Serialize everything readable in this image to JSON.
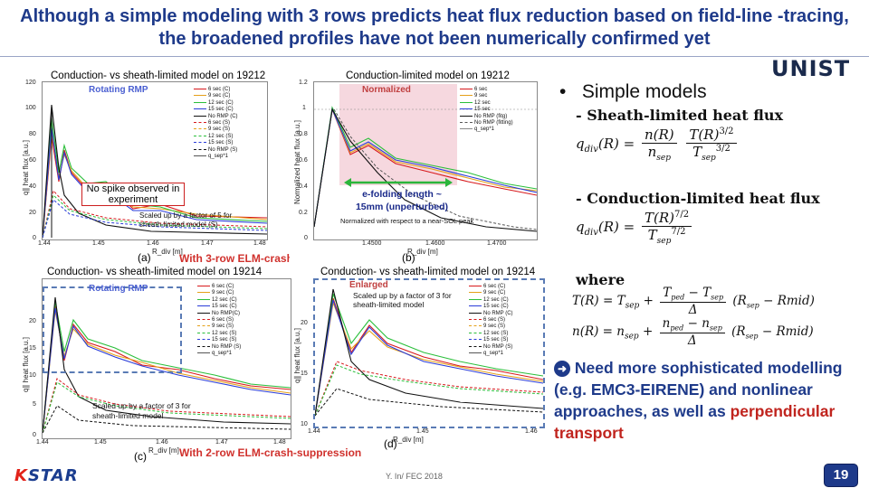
{
  "title": "Although a simple modeling with 3 rows predicts heat flux reduction based on field-line -tracing, the broadened profiles have not been numerically confirmed yet",
  "logo": "UNIST",
  "footer": "Y. In/ FEC 2018",
  "page_number": "19",
  "kstar_logo": {
    "k": "K",
    "star": "STAR"
  },
  "colors": {
    "title": "#1e3a8a",
    "highlight": "#c0241e",
    "tag": "#4a5fd1"
  },
  "panels": {
    "a": {
      "title": "Conduction- vs sheath-limited model on 19212",
      "tag": "Rotating RMP",
      "label": "(a)",
      "ylabel": "q∥ heat flux [a.u.]",
      "xlabel": "R_div [m]",
      "yticks": [
        "120",
        "100",
        "80",
        "60",
        "40",
        "20",
        "0"
      ],
      "xticks": [
        "1.44",
        "1.45",
        "1.46",
        "1.47",
        "1.48"
      ],
      "note": "No spike observed in experiment",
      "scaled": "Scaled up by a factor of 5 for sheath-limited model (S)",
      "legend": [
        "6 sec (C)",
        "9 sec (C)",
        "12 sec (C)",
        "15 sec (C)",
        "No RMP (C)",
        "6 sec (S)",
        "9 sec (S)",
        "12 sec (S)",
        "15 sec (S)",
        "No RMP (S)",
        "q_sep*1"
      ]
    },
    "b": {
      "title": "Conduction-limited model on 19212",
      "tag": "Normalized",
      "label": "(b)",
      "ylabel": "Normalized heat flux [a.u.]",
      "xlabel": "R_div [m]",
      "yticks": [
        "1.2",
        "1",
        "0.8",
        "0.6",
        "0.4",
        "0.2",
        "0"
      ],
      "xticks": [
        "1.4500",
        "1.4600",
        "1.4700"
      ],
      "efold": "e-folding length ~ 15mm (unperturbed)",
      "norm": "Normalized with respect to a near-SOL peak",
      "legend": [
        "6 sec",
        "9 sec",
        "12 sec",
        "15 sec",
        "No RMP (fitg)",
        "No RMP (fitting)",
        "q_sep*1"
      ]
    },
    "c": {
      "title": "Conduction- vs sheath-limited model on 19214",
      "tag": "Rotating RMP",
      "label": "(c)",
      "ylabel": "q∥ heat flux [a.u.]",
      "xlabel": "R_div [m]",
      "yticks": [
        "20",
        "15",
        "10",
        "5",
        "0"
      ],
      "xticks": [
        "1.44",
        "1.45",
        "1.46",
        "1.47",
        "1.48"
      ],
      "scaled": "Scaled up by a factor of 3 for sheath-limited model",
      "legend": [
        "6 sec (C)",
        "9 sec (C)",
        "12 sec (C)",
        "15 sec (C)",
        "No RMP(C)",
        "6 sec (S)",
        "9 sec (S)",
        "12 sec (S)",
        "15 sec (S)",
        "No RMP (S)",
        "q_sep*1"
      ]
    },
    "d": {
      "title": "Conduction- vs sheath-limited model on 19214",
      "tag": "Enlarged",
      "label": "(d)",
      "ylabel": "q∥ heat flux [a.u.]",
      "xlabel": "R_div [m]",
      "yticks": [
        "20",
        "15",
        "10"
      ],
      "xticks": [
        "1.44",
        "1.45",
        "1.46"
      ],
      "scaled": "Scaled up by a factor of 3 for sheath-limited model",
      "legend": [
        "6 sec (C)",
        "9 sec (C)",
        "12 sec (C)",
        "15 sec (C)",
        "No RMP (C)",
        "6 sec (S)",
        "9 sec (S)",
        "12 sec (S)",
        "15 sec (S)",
        "No RMP (S)",
        "q_sep*1"
      ]
    }
  },
  "suppression": {
    "three_row": "With 3-row ELM-crash-suppression",
    "two_row": "With 2-row ELM-crash-suppression"
  },
  "right": {
    "bullet": "Simple models",
    "sheath_head": "- Sheath-limited heat flux",
    "cond_head": "- Conduction-limited heat flux",
    "where": "where",
    "need_prefix": "Need more sophisticated modelling (e.g. EMC3-EIRENE) and nonlinear approaches, as well as",
    "need_red": "perpendicular transport"
  },
  "chart_data": [
    {
      "type": "line",
      "title": "Conduction- vs sheath-limited model on 19212",
      "xlabel": "R_div [m]",
      "ylabel": "q∥ heat flux [a.u.]",
      "xlim": [
        1.44,
        1.48
      ],
      "ylim": [
        0,
        120
      ],
      "series": [
        {
          "name": "6 sec (C)",
          "x": [
            1.44,
            1.443,
            1.445,
            1.447,
            1.45,
            1.455,
            1.46,
            1.465,
            1.47,
            1.475,
            1.48
          ],
          "y": [
            2,
            75,
            28,
            65,
            40,
            28,
            32,
            22,
            25,
            18,
            18
          ]
        },
        {
          "name": "9 sec (C)",
          "x": [
            1.44,
            1.443,
            1.445,
            1.447,
            1.45,
            1.455,
            1.46,
            1.465,
            1.47,
            1.475,
            1.48
          ],
          "y": [
            2,
            80,
            30,
            60,
            42,
            30,
            30,
            24,
            22,
            20,
            16
          ]
        },
        {
          "name": "12 sec (C)",
          "x": [
            1.44,
            1.443,
            1.445,
            1.447,
            1.45,
            1.455,
            1.46,
            1.465,
            1.47,
            1.475,
            1.48
          ],
          "y": [
            2,
            95,
            35,
            70,
            45,
            34,
            34,
            26,
            24,
            20,
            17
          ]
        },
        {
          "name": "No RMP (C)",
          "x": [
            1.44,
            1.443,
            1.445,
            1.447,
            1.45,
            1.455,
            1.46,
            1.465,
            1.47,
            1.475,
            1.48
          ],
          "y": [
            2,
            110,
            40,
            30,
            20,
            14,
            10,
            8,
            6,
            5,
            5
          ]
        }
      ]
    },
    {
      "type": "line",
      "title": "Conduction-limited model on 19212",
      "xlabel": "R_div [m]",
      "ylabel": "Normalized heat flux [a.u.]",
      "xlim": [
        1.445,
        1.475
      ],
      "ylim": [
        0,
        1.2
      ],
      "series": [
        {
          "name": "6 sec",
          "x": [
            1.445,
            1.447,
            1.449,
            1.452,
            1.455,
            1.46,
            1.465,
            1.47,
            1.475
          ],
          "y": [
            0.1,
            1.0,
            0.55,
            0.62,
            0.5,
            0.45,
            0.4,
            0.35,
            0.3
          ]
        },
        {
          "name": "12 sec",
          "x": [
            1.445,
            1.447,
            1.449,
            1.452,
            1.455,
            1.46,
            1.465,
            1.47,
            1.475
          ],
          "y": [
            0.1,
            1.0,
            0.6,
            0.65,
            0.52,
            0.5,
            0.42,
            0.38,
            0.33
          ]
        },
        {
          "name": "No RMP (fitg)",
          "x": [
            1.445,
            1.447,
            1.449,
            1.452,
            1.455,
            1.46,
            1.465,
            1.47,
            1.475
          ],
          "y": [
            0.1,
            1.0,
            0.7,
            0.5,
            0.35,
            0.22,
            0.14,
            0.09,
            0.06
          ]
        }
      ]
    },
    {
      "type": "line",
      "title": "Conduction- vs sheath-limited model on 19214",
      "xlabel": "R_div [m]",
      "ylabel": "q∥ heat flux [a.u.]",
      "xlim": [
        1.44,
        1.48
      ],
      "ylim": [
        0,
        30
      ],
      "series": [
        {
          "name": "6 sec (C)",
          "x": [
            1.44,
            1.443,
            1.445,
            1.447,
            1.45,
            1.455,
            1.46,
            1.465,
            1.47,
            1.475,
            1.48
          ],
          "y": [
            1,
            26,
            14,
            22,
            18,
            15,
            14,
            12,
            11,
            10,
            9
          ]
        },
        {
          "name": "12 sec (C)",
          "x": [
            1.44,
            1.443,
            1.445,
            1.447,
            1.45,
            1.455,
            1.46,
            1.465,
            1.47,
            1.475,
            1.48
          ],
          "y": [
            1,
            27,
            15,
            23,
            19,
            16,
            15,
            13,
            12,
            10,
            10
          ]
        },
        {
          "name": "No RMP(C)",
          "x": [
            1.44,
            1.443,
            1.445,
            1.447,
            1.45,
            1.455,
            1.46,
            1.465,
            1.47,
            1.475,
            1.48
          ],
          "y": [
            1,
            28,
            16,
            12,
            9,
            7,
            6,
            5,
            4,
            3,
            3
          ]
        }
      ]
    },
    {
      "type": "line",
      "title": "Conduction- vs sheath-limited model on 19214",
      "xlabel": "R_div [m]",
      "ylabel": "q∥ heat flux [a.u.]",
      "xlim": [
        1.44,
        1.465
      ],
      "ylim": [
        8,
        24
      ],
      "series": [
        {
          "name": "6 sec (C)",
          "x": [
            1.44,
            1.443,
            1.446,
            1.449,
            1.452,
            1.455,
            1.458,
            1.461,
            1.465
          ],
          "y": [
            10,
            23,
            17,
            20,
            18,
            16,
            15,
            14,
            13
          ]
        },
        {
          "name": "12 sec (C)",
          "x": [
            1.44,
            1.443,
            1.446,
            1.449,
            1.452,
            1.455,
            1.458,
            1.461,
            1.465
          ],
          "y": [
            10,
            22,
            18,
            21,
            19,
            17,
            16,
            15,
            14
          ]
        },
        {
          "name": "No RMP (C)",
          "x": [
            1.44,
            1.443,
            1.446,
            1.449,
            1.452,
            1.455,
            1.458,
            1.461,
            1.465
          ],
          "y": [
            10,
            24,
            16,
            13,
            11,
            10,
            9.5,
            9,
            9
          ]
        }
      ]
    }
  ]
}
